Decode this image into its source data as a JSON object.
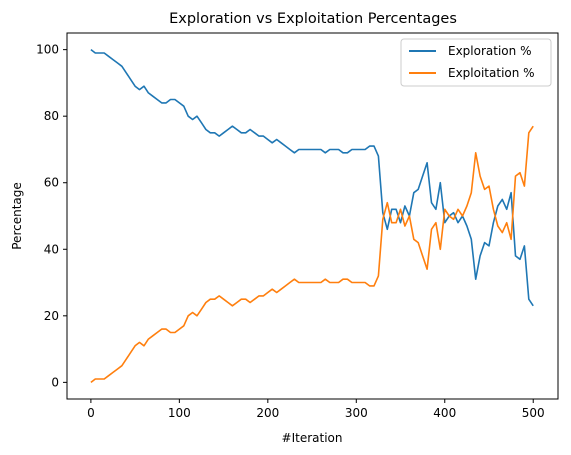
{
  "chart_data": {
    "type": "line",
    "title": "Exploration vs Exploitation Percentages",
    "xlabel": "#Iteration",
    "ylabel": "Percentage",
    "xlim": [
      -27,
      528
    ],
    "ylim": [
      -5,
      105
    ],
    "xticks": [
      0,
      100,
      200,
      300,
      400,
      500
    ],
    "yticks": [
      0,
      20,
      40,
      60,
      80,
      100
    ],
    "grid": false,
    "legend_position": "top-right",
    "colors": {
      "exploration": "#1f77b4",
      "exploitation": "#ff7f0e"
    },
    "x": [
      0,
      5,
      10,
      15,
      20,
      25,
      30,
      35,
      40,
      45,
      50,
      55,
      60,
      65,
      70,
      75,
      80,
      85,
      90,
      95,
      100,
      105,
      110,
      115,
      120,
      125,
      130,
      135,
      140,
      145,
      150,
      155,
      160,
      165,
      170,
      175,
      180,
      185,
      190,
      195,
      200,
      205,
      210,
      215,
      220,
      225,
      230,
      235,
      240,
      245,
      250,
      255,
      260,
      265,
      270,
      275,
      280,
      285,
      290,
      295,
      300,
      305,
      310,
      315,
      320,
      325,
      330,
      335,
      340,
      345,
      350,
      355,
      360,
      365,
      370,
      375,
      380,
      385,
      390,
      395,
      400,
      405,
      410,
      415,
      420,
      425,
      430,
      435,
      440,
      445,
      450,
      455,
      460,
      465,
      470,
      475,
      480,
      485,
      490,
      495,
      500
    ],
    "series": [
      {
        "name": "Exploration %",
        "values": [
          100,
          99,
          99,
          99,
          98,
          97,
          96,
          95,
          93,
          91,
          89,
          88,
          89,
          87,
          86,
          85,
          84,
          84,
          85,
          85,
          84,
          83,
          80,
          79,
          80,
          78,
          76,
          75,
          75,
          74,
          75,
          76,
          77,
          76,
          75,
          75,
          76,
          75,
          74,
          74,
          73,
          72,
          73,
          72,
          71,
          70,
          69,
          70,
          70,
          70,
          70,
          70,
          70,
          69,
          70,
          70,
          70,
          69,
          69,
          70,
          70,
          70,
          70,
          71,
          71,
          68,
          51,
          46,
          52,
          52,
          48,
          53,
          50,
          57,
          58,
          62,
          66,
          54,
          52,
          60,
          48,
          50,
          51,
          48,
          50,
          47,
          43,
          31,
          38,
          42,
          41,
          48,
          53,
          55,
          52,
          57,
          38,
          37,
          41,
          25,
          23
        ]
      },
      {
        "name": "Exploitation %",
        "values": [
          0,
          1,
          1,
          1,
          2,
          3,
          4,
          5,
          7,
          9,
          11,
          12,
          11,
          13,
          14,
          15,
          16,
          16,
          15,
          15,
          16,
          17,
          20,
          21,
          20,
          22,
          24,
          25,
          25,
          26,
          25,
          24,
          23,
          24,
          25,
          25,
          24,
          25,
          26,
          26,
          27,
          28,
          27,
          28,
          29,
          30,
          31,
          30,
          30,
          30,
          30,
          30,
          30,
          31,
          30,
          30,
          30,
          31,
          31,
          30,
          30,
          30,
          30,
          29,
          29,
          32,
          49,
          54,
          48,
          48,
          52,
          47,
          50,
          43,
          42,
          38,
          34,
          46,
          48,
          40,
          52,
          50,
          49,
          52,
          50,
          53,
          57,
          69,
          62,
          58,
          59,
          52,
          47,
          45,
          48,
          43,
          62,
          63,
          59,
          75,
          77
        ]
      }
    ]
  }
}
